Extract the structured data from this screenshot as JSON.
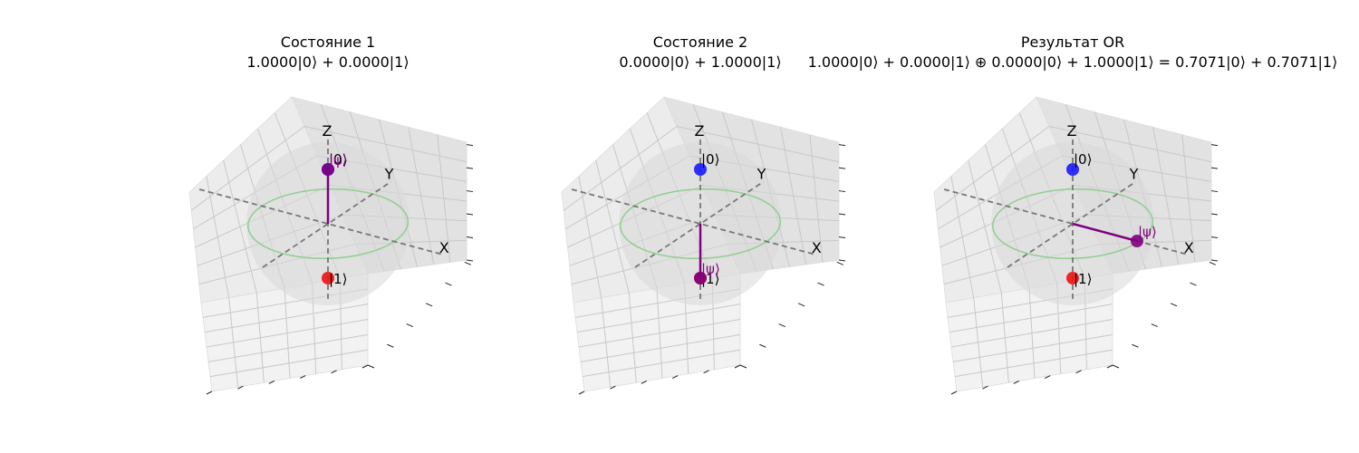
{
  "chart_data": [
    {
      "type": "bloch-sphere-3d",
      "title": "Состояние 1",
      "subtitle": "1.0000|0⟩ + 0.0000|1⟩",
      "axis_labels": {
        "x": "X",
        "y": "Y",
        "z": "Z"
      },
      "basis_labels": {
        "zero": "|0⟩",
        "one": "|1⟩"
      },
      "state_label": "|ψ⟩",
      "amplitudes": {
        "alpha": 1.0,
        "beta": 0.0
      },
      "state_vector": {
        "x": 0.0,
        "y": 0.0,
        "z": 1.0
      },
      "grid": true
    },
    {
      "type": "bloch-sphere-3d",
      "title": "Состояние 2",
      "subtitle": "0.0000|0⟩ + 1.0000|1⟩",
      "axis_labels": {
        "x": "X",
        "y": "Y",
        "z": "Z"
      },
      "basis_labels": {
        "zero": "|0⟩",
        "one": "|1⟩"
      },
      "state_label": "|ψ⟩",
      "amplitudes": {
        "alpha": 0.0,
        "beta": 1.0
      },
      "state_vector": {
        "x": 0.0,
        "y": 0.0,
        "z": -1.0
      },
      "grid": true
    },
    {
      "type": "bloch-sphere-3d",
      "title": "Результат OR",
      "subtitle": "1.0000|0⟩ + 0.0000|1⟩ ⊕ 0.0000|0⟩ + 1.0000|1⟩ = 0.7071|0⟩ + 0.7071|1⟩",
      "axis_labels": {
        "x": "X",
        "y": "Y",
        "z": "Z"
      },
      "basis_labels": {
        "zero": "|0⟩",
        "one": "|1⟩"
      },
      "state_label": "|ψ⟩",
      "amplitudes": {
        "alpha": 0.7071,
        "beta": 0.7071
      },
      "state_vector": {
        "x": 1.0,
        "y": 0.0,
        "z": 0.0
      },
      "grid": true
    }
  ],
  "colors": {
    "zero_marker": "#1a1aff",
    "one_marker": "#ee1111",
    "state": "#800080",
    "axes_dash": "#777777",
    "equator": "#8fcf8f",
    "sphere_fill": "#d8d8d8",
    "pane_left": "#ececec",
    "pane_right": "#e2e2e2",
    "pane_floor": "#f2f2f2",
    "grid_line": "#c8c8c8"
  }
}
